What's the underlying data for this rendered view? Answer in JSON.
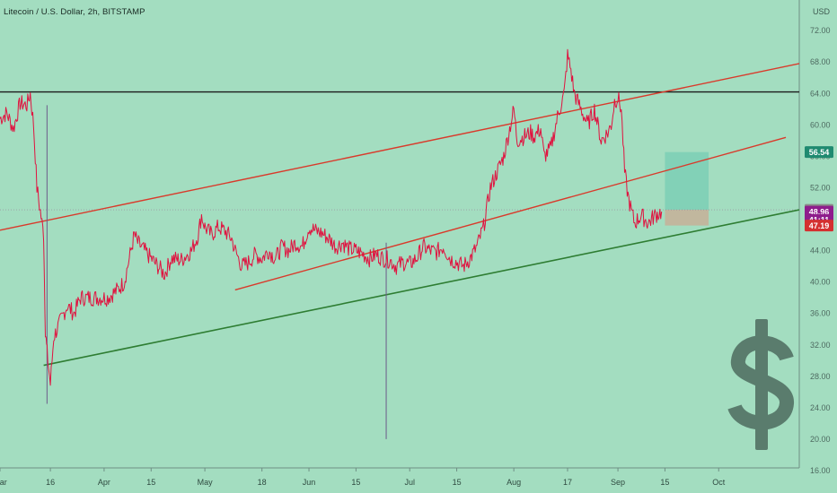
{
  "header": {
    "title": "Litecoin / U.S. Dollar, 2h, BITSTAMP",
    "currency": "USD"
  },
  "colors": {
    "background": "#a3ddc0",
    "price_line": "#e0123f",
    "channel_lines": "#d93a2b",
    "support_line": "#2e7d32",
    "resistance_line": "#1b1b1b",
    "target_zone": "#7ecfb6",
    "stop_zone": "#c4b29a",
    "dollar_icon": "#5a7c6d"
  },
  "chart_data": {
    "type": "line",
    "title": "Litecoin / U.S. Dollar, 2h, BITSTAMP",
    "ylabel": "USD",
    "ylim": [
      15.2,
      74.3
    ],
    "y_ticks": [
      "72.00",
      "68.00",
      "64.00",
      "60.00",
      "56.00",
      "52.00",
      "48.00",
      "44.00",
      "40.00",
      "36.00",
      "32.00",
      "28.00",
      "24.00",
      "20.00",
      "16.00"
    ],
    "x_labels": [
      "Mar",
      "16",
      "Apr",
      "15",
      "May",
      "18",
      "Jun",
      "15",
      "Jul",
      "15",
      "Aug",
      "17",
      "Sep",
      "15",
      "Oct"
    ],
    "x_label_days": [
      1,
      16,
      32,
      46,
      62,
      79,
      93,
      107,
      123,
      137,
      154,
      170,
      185,
      199,
      215
    ],
    "x_range_days": [
      1,
      239
    ],
    "series": [
      {
        "key": "ltc-usd",
        "points": [
          [
            1,
            60.8
          ],
          [
            3,
            61.5
          ],
          [
            5,
            59.5
          ],
          [
            7,
            62.8
          ],
          [
            9,
            62.5
          ],
          [
            10,
            64
          ],
          [
            11,
            60
          ],
          [
            12,
            52
          ],
          [
            13,
            49
          ],
          [
            14,
            46
          ],
          [
            14.5,
            34
          ],
          [
            15,
            31
          ],
          [
            16,
            27
          ],
          [
            17,
            33
          ],
          [
            19,
            35
          ],
          [
            21,
            37
          ],
          [
            23,
            36
          ],
          [
            25,
            38
          ],
          [
            28,
            38
          ],
          [
            30,
            38
          ],
          [
            33,
            38
          ],
          [
            36,
            39
          ],
          [
            38,
            40
          ],
          [
            40,
            44
          ],
          [
            41,
            46
          ],
          [
            42,
            45
          ],
          [
            44,
            44
          ],
          [
            46,
            43
          ],
          [
            48,
            42
          ],
          [
            50,
            41
          ],
          [
            52,
            43
          ],
          [
            55,
            42.8
          ],
          [
            58,
            44
          ],
          [
            59,
            45
          ],
          [
            60,
            46
          ],
          [
            61,
            48.5
          ],
          [
            62,
            47
          ],
          [
            64,
            46
          ],
          [
            66,
            47
          ],
          [
            68,
            46.5
          ],
          [
            70,
            45.5
          ],
          [
            71,
            44
          ],
          [
            73,
            42
          ],
          [
            75,
            42.5
          ],
          [
            77,
            43.5
          ],
          [
            79,
            43
          ],
          [
            81,
            44
          ],
          [
            83,
            43
          ],
          [
            85,
            44.5
          ],
          [
            87,
            44
          ],
          [
            89,
            45
          ],
          [
            91,
            44.5
          ],
          [
            93,
            47
          ],
          [
            95,
            46.5
          ],
          [
            97,
            46.2
          ],
          [
            99,
            45.5
          ],
          [
            101,
            44.5
          ],
          [
            103,
            45
          ],
          [
            105,
            44.2
          ],
          [
            107,
            44
          ],
          [
            109,
            43.6
          ],
          [
            111,
            43
          ],
          [
            113,
            43.5
          ],
          [
            115,
            43
          ],
          [
            117,
            42.8
          ],
          [
            119,
            42
          ],
          [
            121,
            42.5
          ],
          [
            123,
            42.3
          ],
          [
            125,
            43
          ],
          [
            127,
            44.5
          ],
          [
            129,
            44
          ],
          [
            131,
            43.8
          ],
          [
            133,
            44.5
          ],
          [
            135,
            43
          ],
          [
            137,
            42.5
          ],
          [
            139,
            42
          ],
          [
            141,
            43
          ],
          [
            143,
            44.5
          ],
          [
            145,
            47
          ],
          [
            147,
            52
          ],
          [
            149,
            54
          ],
          [
            151,
            56
          ],
          [
            153,
            60
          ],
          [
            154,
            62
          ],
          [
            155,
            58
          ],
          [
            157,
            58.5
          ],
          [
            159,
            59
          ],
          [
            160,
            58.5
          ],
          [
            162,
            59.5
          ],
          [
            163,
            56
          ],
          [
            165,
            57
          ],
          [
            167,
            61
          ],
          [
            169,
            64
          ],
          [
            170,
            68.8
          ],
          [
            171,
            67
          ],
          [
            172,
            64
          ],
          [
            174,
            62
          ],
          [
            176,
            60
          ],
          [
            178,
            62
          ],
          [
            180,
            58
          ],
          [
            182,
            59
          ],
          [
            183,
            60
          ],
          [
            184,
            63
          ],
          [
            185,
            63.5
          ],
          [
            186,
            62
          ],
          [
            187,
            54
          ],
          [
            188,
            51
          ],
          [
            189,
            49
          ],
          [
            190,
            47.5
          ],
          [
            192,
            48.5
          ],
          [
            194,
            47.5
          ],
          [
            196,
            48.5
          ],
          [
            198,
            48.96
          ]
        ]
      }
    ],
    "spikes": [
      {
        "day": 15,
        "high": 62.5,
        "low": 24.5
      },
      {
        "day": 116,
        "high": 45,
        "low": 20
      }
    ],
    "resistance_line": {
      "value": 64.2
    },
    "channel_upper": {
      "from": [
        1,
        46.6
      ],
      "to": [
        239,
        67.8
      ]
    },
    "channel_middle": {
      "from": [
        71,
        39
      ],
      "to": [
        235,
        58.4
      ]
    },
    "support_line": {
      "from": [
        14,
        29.4
      ],
      "to": [
        239,
        49.2
      ]
    },
    "position": {
      "day_start": 199,
      "day_end": 212,
      "entry": 49.19,
      "target": 56.54,
      "stop": 47.19
    },
    "price_labels": [
      {
        "key": "target",
        "text": "56.54",
        "value": 56.54,
        "color": "#1f8a70"
      },
      {
        "key": "entry",
        "text": "49.19",
        "value": 49.19,
        "color": "#8a8a8a"
      },
      {
        "key": "last",
        "text": "48.96",
        "value": 48.96,
        "color": "#8e1d8c"
      },
      {
        "key": "countdown",
        "text": "41:11",
        "value": 47.9,
        "color": "#8e1d8c"
      },
      {
        "key": "stop",
        "text": "47.19",
        "value": 47.19,
        "color": "#d43030"
      }
    ]
  },
  "icon": {
    "name": "dollar-sign-icon"
  }
}
